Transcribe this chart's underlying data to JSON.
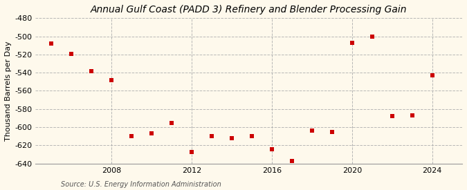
{
  "title": "Annual Gulf Coast (PADD 3) Refinery and Blender Processing Gain",
  "ylabel": "Thousand Barrels per Day",
  "source": "Source: U.S. Energy Information Administration",
  "years": [
    2005,
    2006,
    2007,
    2008,
    2009,
    2010,
    2011,
    2012,
    2013,
    2014,
    2015,
    2016,
    2017,
    2018,
    2019,
    2020,
    2021,
    2022,
    2023,
    2024
  ],
  "values": [
    -508,
    -519,
    -538,
    -548,
    -610,
    -607,
    -595,
    -627,
    -610,
    -612,
    -610,
    -624,
    -637,
    -604,
    -605,
    -507,
    -500,
    -588,
    -587,
    -543
  ],
  "ylim": [
    -640,
    -480
  ],
  "yticks": [
    -480,
    -500,
    -520,
    -540,
    -560,
    -580,
    -600,
    -620,
    -640
  ],
  "xticks": [
    2008,
    2012,
    2016,
    2020,
    2024
  ],
  "xlim_left": 2004.2,
  "xlim_right": 2025.5,
  "marker_color": "#cc0000",
  "marker": "s",
  "marker_size": 4,
  "grid_color": "#b0b0b0",
  "bg_color": "#fef9ec",
  "title_fontsize": 10,
  "title_fontstyle": "italic",
  "label_fontsize": 8,
  "tick_fontsize": 8,
  "source_fontsize": 7
}
